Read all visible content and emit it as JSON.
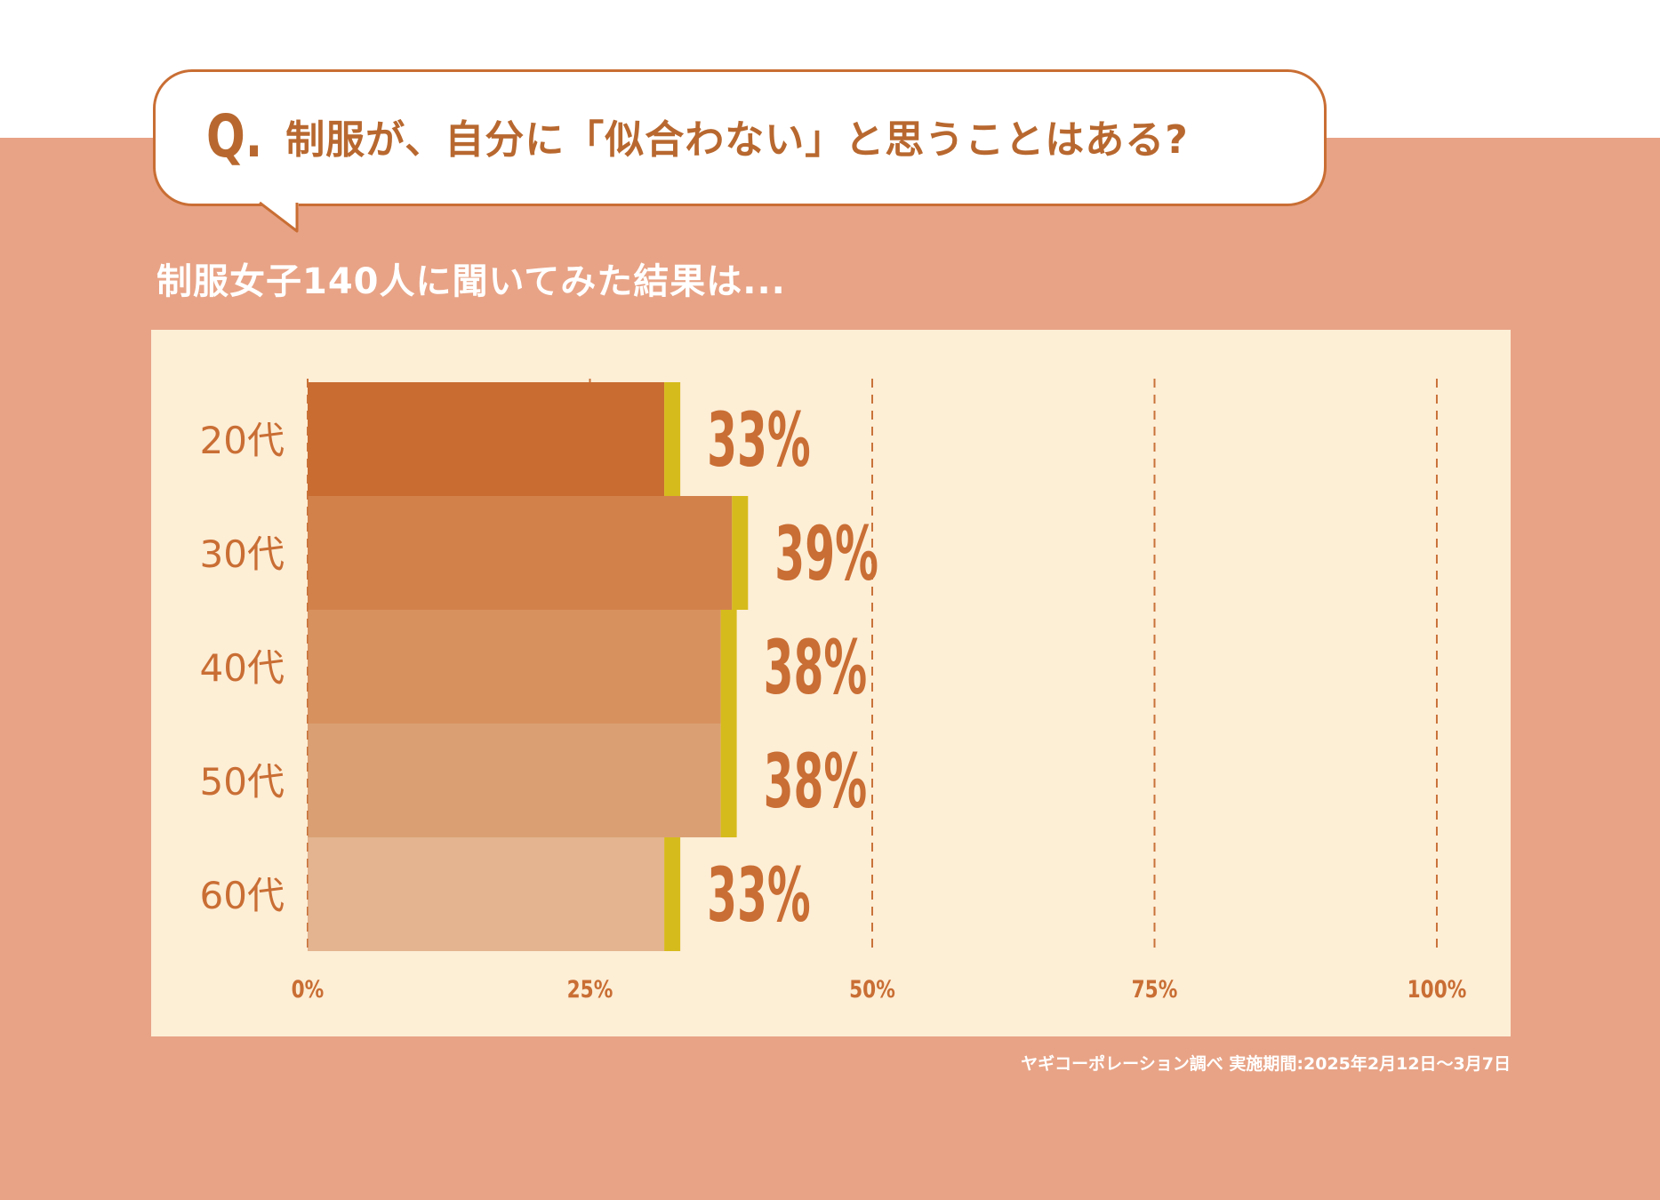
{
  "question": {
    "prefix": "Q.",
    "text": "制服が、自分に「似合わない」と思うことはある?"
  },
  "subtitle": "制服女子140人に聞いてみた結果は...",
  "source_note": "ヤギコーポレーション調べ 実施期間:2025年2月12日〜3月7日",
  "colors": {
    "background_band": "#e8a386",
    "panel": "#fdeed6",
    "accent_text": "#c96e34",
    "bar_cap": "#d6bb1c",
    "gridline": "#c9733a"
  },
  "chart_data": {
    "type": "bar",
    "orientation": "horizontal",
    "title": "",
    "xlabel": "",
    "ylabel": "",
    "categories": [
      "20代",
      "30代",
      "40代",
      "50代",
      "60代"
    ],
    "values": [
      33,
      39,
      38,
      38,
      33
    ],
    "value_labels": [
      "33%",
      "39%",
      "38%",
      "38%",
      "33%"
    ],
    "bar_colors": [
      "#c86c31",
      "#d2814b",
      "#d7915f",
      "#daa073",
      "#e3b48f"
    ],
    "xlim": [
      0,
      100
    ],
    "x_ticks": [
      0,
      25,
      50,
      75,
      100
    ],
    "x_tick_labels": [
      "0%",
      "25%",
      "50%",
      "75%",
      "100%"
    ],
    "grid": "vertical dashed",
    "legend": "none"
  }
}
